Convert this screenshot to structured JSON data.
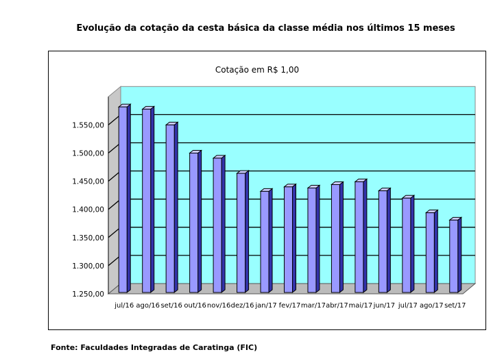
{
  "page": {
    "title": "Evolução da cotação da cesta básica da classe média nos últimos 15 meses",
    "source": "Fonte: Faculdades Integradas de Caratinga (FIC)"
  },
  "chart_data": {
    "type": "bar",
    "title": "Cotação em R$ 1,00",
    "xlabel": "",
    "ylabel": "",
    "categories": [
      "jul/16",
      "ago/16",
      "set/16",
      "out/16",
      "nov/16",
      "dez/16",
      "jan/17",
      "fev/17",
      "mar/17",
      "abr/17",
      "mai/17",
      "jun/17",
      "jul/17",
      "ago/17",
      "set/17"
    ],
    "values": [
      1582,
      1578,
      1550,
      1500,
      1491,
      1464,
      1432,
      1440,
      1438,
      1444,
      1449,
      1433,
      1420,
      1394,
      1381
    ],
    "ylim": [
      1250,
      1600
    ],
    "yticks": [
      1250,
      1300,
      1350,
      1400,
      1450,
      1500,
      1550
    ],
    "ytick_labels": [
      "1.250,00",
      "1.300,00",
      "1.350,00",
      "1.400,00",
      "1.450,00",
      "1.500,00",
      "1.550,00"
    ],
    "grid": true,
    "legend": "none",
    "colors": {
      "bar_front": "#9999ff",
      "bar_side": "#3333aa",
      "bar_top": "#ccccff",
      "wall": "#99ffff",
      "floor": "#bbbbbb",
      "grid": "#000000"
    }
  }
}
